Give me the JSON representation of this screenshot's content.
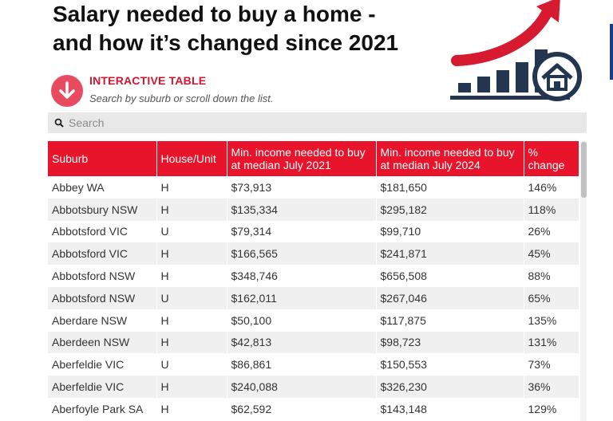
{
  "title_line1": "Salary needed to buy a home -",
  "title_line2": "and how it’s changed since 2021",
  "badge": {
    "title": "INTERACTIVE TABLE",
    "subtitle": "Search by suburb or scroll down the list."
  },
  "search": {
    "placeholder": "Search"
  },
  "colors": {
    "header_red": "#e8142b",
    "accent_pink": "#e84a60",
    "navy": "#24354f"
  },
  "icons": [
    "arrow-down-icon",
    "search-icon",
    "house-chart-icon"
  ],
  "table": {
    "headers": [
      "Suburb",
      "House/Unit",
      "Min. income needed to buy at median July 2021",
      "Min. income needed to buy at median July 2024",
      "% change"
    ],
    "rows": [
      [
        "Abbey WA",
        "H",
        "$73,913",
        "$181,650",
        "146%"
      ],
      [
        "Abbotsbury NSW",
        "H",
        "$135,334",
        "$295,182",
        "118%"
      ],
      [
        "Abbotsford VIC",
        "U",
        "$79,314",
        "$99,710",
        "26%"
      ],
      [
        "Abbotsford VIC",
        "H",
        "$166,565",
        "$241,871",
        "45%"
      ],
      [
        "Abbotsford NSW",
        "H",
        "$348,746",
        "$656,508",
        "88%"
      ],
      [
        "Abbotsford NSW",
        "U",
        "$162,011",
        "$267,046",
        "65%"
      ],
      [
        "Aberdare NSW",
        "H",
        "$50,100",
        "$117,875",
        "135%"
      ],
      [
        "Aberdeen NSW",
        "H",
        "$42,813",
        "$98,723",
        "131%"
      ],
      [
        "Aberfeldie VIC",
        "U",
        "$86,861",
        "$150,553",
        "73%"
      ],
      [
        "Aberfeldie VIC",
        "H",
        "$240,088",
        "$326,230",
        "36%"
      ],
      [
        "Aberfoyle Park SA",
        "H",
        "$62,592",
        "$143,148",
        "129%"
      ]
    ]
  }
}
